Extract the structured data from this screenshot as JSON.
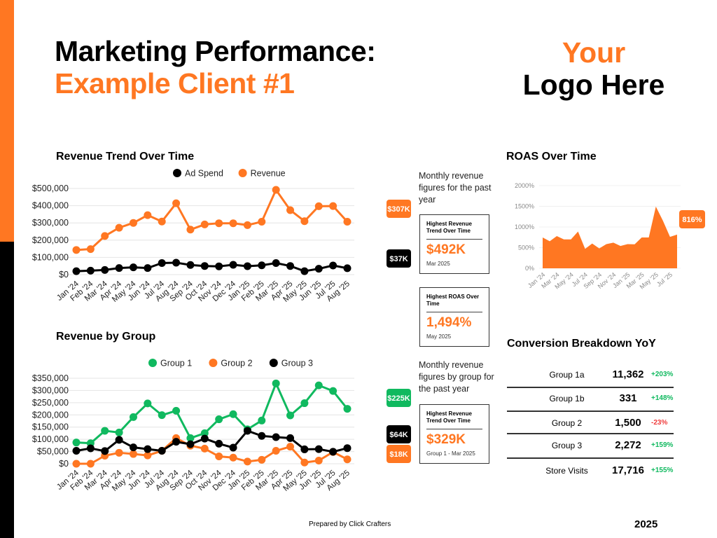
{
  "header": {
    "title_line1": "Marketing Performance:",
    "title_line2": "Example Client #1",
    "logo_line1": "Your",
    "logo_line2": "Logo Here"
  },
  "colors": {
    "orange": "#ff7722",
    "black": "#000000",
    "green": "#10b95f",
    "red": "#ef3b3b"
  },
  "notes": {
    "revenue_note": "Monthly revenue figures for the past year",
    "group_note": "Monthly revenue figures by group for the past year"
  },
  "boxes": [
    {
      "title": "Highest Revenue Trend Over Time",
      "value": "$492K",
      "sub": "Mar 2025"
    },
    {
      "title": "Highest ROAS Over Time",
      "value": "1,494%",
      "sub": "May 2025"
    },
    {
      "title": "Highest Revenue Trend Over Time",
      "value": "$329K",
      "sub": "Group 1 - Mar 2025"
    }
  ],
  "conversion": {
    "title": "Conversion Breakdown YoY",
    "rows": [
      {
        "label": "Group 1a",
        "value": "11,362",
        "change": "+203%",
        "positive": true
      },
      {
        "label": "Group 1b",
        "value": "331",
        "change": "+148%",
        "positive": true
      },
      {
        "label": "Group 2",
        "value": "1,500",
        "change": "-23%",
        "positive": false
      },
      {
        "label": "Group 3",
        "value": "2,272",
        "change": "+159%",
        "positive": true
      },
      {
        "label": "Store Visits",
        "value": "17,716",
        "change": "+155%",
        "positive": true
      }
    ]
  },
  "footer": {
    "prepared": "Prepared by Click Crafters",
    "year": "2025"
  },
  "chart_data": [
    {
      "type": "line",
      "title": "Revenue Trend Over Time",
      "legend": "top",
      "categories": [
        "Jan '24",
        "Feb '24",
        "Mar '24",
        "Apr '24",
        "May '24",
        "Jun '24",
        "Jul '24",
        "Aug '24",
        "Sep '24",
        "Oct '24",
        "Nov '24",
        "Dec '24",
        "Jan '25",
        "Feb '25",
        "Mar '25",
        "Apr '25",
        "May '25",
        "Jun '25",
        "Jul '25",
        "Aug '25"
      ],
      "yticks": [
        "$0",
        "$100,000",
        "$200,000",
        "$300,000",
        "$400,000",
        "$500,000"
      ],
      "ylim": [
        0,
        500000
      ],
      "grid": true,
      "series": [
        {
          "name": "Ad Spend",
          "color": "#000000",
          "end_label": "$37K",
          "values": [
            20000,
            23000,
            27000,
            38000,
            42000,
            38000,
            67000,
            69000,
            56000,
            50000,
            48000,
            57000,
            49000,
            54000,
            67000,
            50000,
            20000,
            34000,
            53000,
            37000
          ]
        },
        {
          "name": "Revenue",
          "color": "#ff7722",
          "end_label": "$307K",
          "values": [
            143000,
            148000,
            224000,
            272000,
            300000,
            345000,
            308000,
            414000,
            261000,
            291000,
            298000,
            298000,
            287000,
            307000,
            492000,
            374000,
            310000,
            397000,
            398000,
            307000
          ]
        }
      ]
    },
    {
      "type": "line",
      "title": "Revenue by Group",
      "legend": "top",
      "categories": [
        "Jan '24",
        "Feb '24",
        "Mar '24",
        "Apr '24",
        "May '24",
        "Jun '24",
        "Jul '24",
        "Aug '24",
        "Sep '24",
        "Oct '24",
        "Nov '24",
        "Dec '24",
        "Jan '25",
        "Feb '25",
        "Mar '25",
        "Apr '25",
        "May '25",
        "Jun '25",
        "Jul '25",
        "Aug '25"
      ],
      "yticks": [
        "$0",
        "$50,000",
        "$100,000",
        "$150,000",
        "$200,000",
        "$250,000",
        "$300,000",
        "$350,000"
      ],
      "ylim": [
        0,
        350000
      ],
      "grid": true,
      "series": [
        {
          "name": "Group 1",
          "color": "#10b95f",
          "end_label": "$225K",
          "values": [
            87000,
            84000,
            135000,
            128000,
            191000,
            247000,
            199000,
            217000,
            105000,
            125000,
            182000,
            203000,
            141000,
            177000,
            329000,
            198000,
            248000,
            321000,
            298000,
            225000
          ]
        },
        {
          "name": "Group 2",
          "color": "#ff7722",
          "end_label": "$18K",
          "values": [
            0,
            0,
            33000,
            45000,
            40000,
            34000,
            53000,
            105000,
            74000,
            62000,
            30000,
            25000,
            9000,
            16000,
            53000,
            70000,
            5000,
            13000,
            48000,
            18000
          ]
        },
        {
          "name": "Group 3",
          "color": "#000000",
          "end_label": "$64K",
          "values": [
            53000,
            63000,
            52000,
            98000,
            67000,
            60000,
            53000,
            90000,
            80000,
            103000,
            82000,
            66000,
            135000,
            114000,
            109000,
            105000,
            59000,
            60000,
            49000,
            64000
          ]
        }
      ]
    },
    {
      "type": "area",
      "title": "ROAS Over Time",
      "color": "#ff7722",
      "categories": [
        "Jan '24",
        "Feb '24",
        "Mar '24",
        "Apr '24",
        "May '24",
        "Jun '24",
        "Jul '24",
        "Aug '24",
        "Sep '24",
        "Oct '24",
        "Nov '24",
        "Dec '24",
        "Jan '25",
        "Feb '25",
        "Mar '25",
        "Apr '25",
        "May '25",
        "Jun '25",
        "Jul '25",
        "Aug '25"
      ],
      "xtick_labels": [
        "Jan '24",
        "Mar '24",
        "May '24",
        "Jul '24",
        "Sep '24",
        "Nov '24",
        "Jan '25",
        "Mar '25",
        "May '25",
        "Jul '25"
      ],
      "yticks": [
        "0%",
        "500%",
        "1000%",
        "1500%",
        "2000%"
      ],
      "ylim": [
        0,
        2000
      ],
      "grid": true,
      "end_label": "816%",
      "values": [
        745,
        655,
        780,
        700,
        700,
        890,
        470,
        600,
        480,
        585,
        620,
        540,
        585,
        580,
        745,
        745,
        1494,
        1150,
        760,
        816
      ]
    }
  ]
}
